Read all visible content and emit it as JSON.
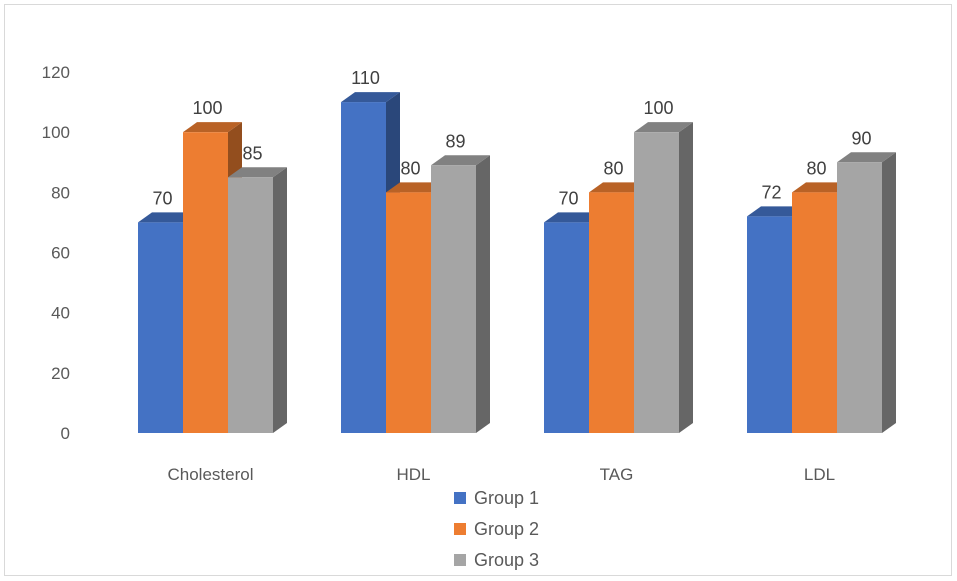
{
  "chart_data": {
    "type": "bar",
    "title": "",
    "xlabel": "",
    "ylabel": "",
    "ylim": [
      0,
      120
    ],
    "yticks": [
      0,
      20,
      40,
      60,
      80,
      100,
      120
    ],
    "grid": false,
    "legend_position": "bottom",
    "categories": [
      "Cholesterol",
      "HDL",
      "TAG",
      "LDL"
    ],
    "series": [
      {
        "name": "Group 1",
        "color": "#4472c4",
        "values": [
          70,
          110,
          70,
          72
        ]
      },
      {
        "name": "Group 2",
        "color": "#ed7d31",
        "values": [
          100,
          80,
          80,
          80
        ]
      },
      {
        "name": "Group 3",
        "color": "#a5a5a5",
        "values": [
          85,
          89,
          100,
          90
        ]
      }
    ]
  }
}
